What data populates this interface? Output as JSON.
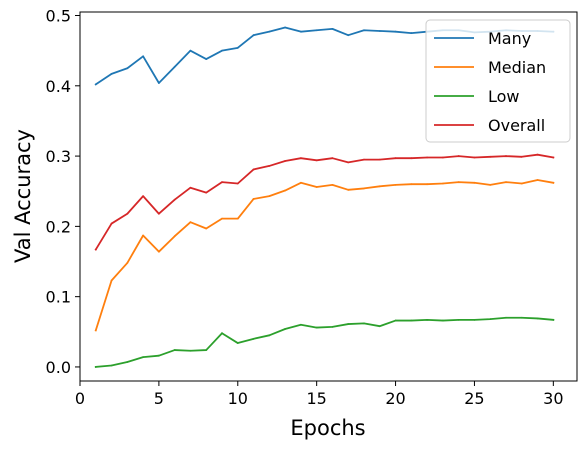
{
  "chart_data": {
    "type": "line",
    "title": "",
    "xlabel": "Epochs",
    "ylabel": "Val Accuracy",
    "xlim": [
      0,
      31.5
    ],
    "ylim": [
      -0.02,
      0.505
    ],
    "xticks": [
      0,
      5,
      10,
      15,
      20,
      25,
      30
    ],
    "yticks": [
      0.0,
      0.1,
      0.2,
      0.3,
      0.4,
      0.5
    ],
    "xtick_labels": [
      "0",
      "5",
      "10",
      "15",
      "20",
      "25",
      "30"
    ],
    "ytick_labels": [
      "0.0",
      "0.1",
      "0.2",
      "0.3",
      "0.4",
      "0.5"
    ],
    "grid": false,
    "legend_position": "top-right",
    "x": [
      1,
      2,
      3,
      4,
      5,
      6,
      7,
      8,
      9,
      10,
      11,
      12,
      13,
      14,
      15,
      16,
      17,
      18,
      19,
      20,
      21,
      22,
      23,
      24,
      25,
      26,
      27,
      28,
      29,
      30
    ],
    "series": [
      {
        "name": "Many",
        "color": "#1f77b4",
        "values": [
          0.402,
          0.417,
          0.425,
          0.442,
          0.404,
          0.427,
          0.45,
          0.438,
          0.45,
          0.454,
          0.472,
          0.477,
          0.483,
          0.477,
          0.479,
          0.481,
          0.472,
          0.479,
          0.478,
          0.477,
          0.475,
          0.477,
          0.479,
          0.479,
          0.476,
          0.477,
          0.479,
          0.478,
          0.478,
          0.477
        ]
      },
      {
        "name": "Median",
        "color": "#ff7f0e",
        "values": [
          0.052,
          0.123,
          0.148,
          0.187,
          0.164,
          0.186,
          0.206,
          0.197,
          0.211,
          0.211,
          0.239,
          0.243,
          0.251,
          0.262,
          0.256,
          0.259,
          0.252,
          0.254,
          0.257,
          0.259,
          0.26,
          0.26,
          0.261,
          0.263,
          0.262,
          0.259,
          0.263,
          0.261,
          0.266,
          0.262
        ]
      },
      {
        "name": "Low",
        "color": "#2ca02c",
        "values": [
          0.0,
          0.002,
          0.007,
          0.014,
          0.016,
          0.024,
          0.023,
          0.024,
          0.048,
          0.034,
          0.04,
          0.045,
          0.054,
          0.06,
          0.056,
          0.057,
          0.061,
          0.062,
          0.058,
          0.066,
          0.066,
          0.067,
          0.066,
          0.067,
          0.067,
          0.068,
          0.07,
          0.07,
          0.069,
          0.067
        ]
      },
      {
        "name": "Overall",
        "color": "#d62728",
        "values": [
          0.167,
          0.204,
          0.218,
          0.243,
          0.218,
          0.238,
          0.255,
          0.248,
          0.263,
          0.261,
          0.281,
          0.286,
          0.293,
          0.297,
          0.294,
          0.297,
          0.291,
          0.295,
          0.295,
          0.297,
          0.297,
          0.298,
          0.298,
          0.3,
          0.298,
          0.299,
          0.3,
          0.299,
          0.302,
          0.298
        ]
      }
    ]
  }
}
